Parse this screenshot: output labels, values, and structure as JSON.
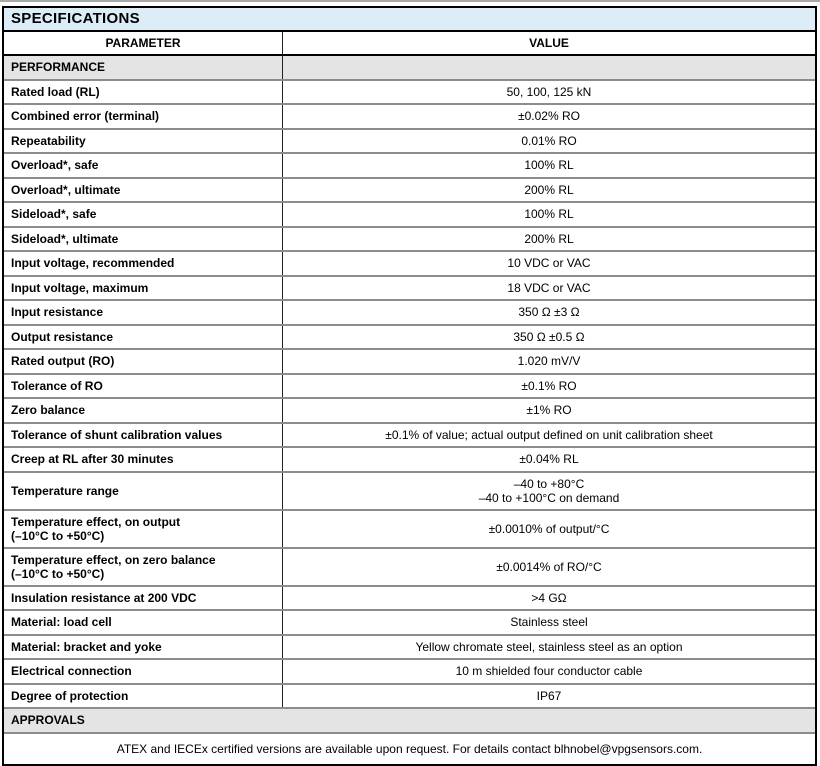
{
  "page": {
    "title": "SPECIFICATIONS"
  },
  "columns": {
    "param": "PARAMETER",
    "value": "VALUE"
  },
  "sections": {
    "performance": "PERFORMANCE",
    "approvals": "APPROVALS"
  },
  "rows": [
    {
      "param": "Rated load (RL)",
      "value": "50, 100, 125 kN"
    },
    {
      "param": "Combined error (terminal)",
      "value": "±0.02% RO"
    },
    {
      "param": "Repeatability",
      "value": "0.01% RO"
    },
    {
      "param": "Overload*, safe",
      "value": "100% RL"
    },
    {
      "param": "Overload*, ultimate",
      "value": "200% RL"
    },
    {
      "param": "Sideload*, safe",
      "value": "100% RL"
    },
    {
      "param": "Sideload*, ultimate",
      "value": "200% RL"
    },
    {
      "param": "Input voltage, recommended",
      "value": "10 VDC or VAC"
    },
    {
      "param": "Input voltage, maximum",
      "value": "18 VDC or VAC"
    },
    {
      "param": "Input resistance",
      "value": "350 Ω ±3 Ω"
    },
    {
      "param": "Output resistance",
      "value": "350 Ω ±0.5 Ω"
    },
    {
      "param": "Rated output (RO)",
      "value": "1.020 mV/V"
    },
    {
      "param": "Tolerance of RO",
      "value": "±0.1% RO"
    },
    {
      "param": "Zero balance",
      "value": "±1% RO"
    },
    {
      "param": "Tolerance of shunt calibration values",
      "value": "±0.1% of value; actual output defined on unit calibration sheet"
    },
    {
      "param": "Creep at RL after 30 minutes",
      "value": "±0.04% RL"
    },
    {
      "param": "Temperature range",
      "value": "–40 to +80°C\n–40 to +100°C on demand"
    },
    {
      "param": "Temperature effect, on output\n(–10°C to +50°C)",
      "value": "±0.0010% of output/°C"
    },
    {
      "param": "Temperature effect, on zero balance\n(–10°C to +50°C)",
      "value": "±0.0014% of RO/°C"
    },
    {
      "param": "Insulation resistance at 200 VDC",
      "value": ">4 GΩ"
    },
    {
      "param": "Material: load cell",
      "value": "Stainless steel"
    },
    {
      "param": "Material: bracket and yoke",
      "value": "Yellow chromate steel, stainless steel as an option"
    },
    {
      "param": "Electrical connection",
      "value": "10 m shielded four conductor cable"
    },
    {
      "param": "Degree of protection",
      "value": "IP67"
    }
  ],
  "note": "ATEX and IECEx certified versions are available upon request. For details contact blhnobel@vpgsensors.com.",
  "colors": {
    "title_bg": "#dcedf8",
    "section_bg": "#e4e4e4",
    "grid_line": "#8c8c8c",
    "outer_border": "#000000"
  }
}
